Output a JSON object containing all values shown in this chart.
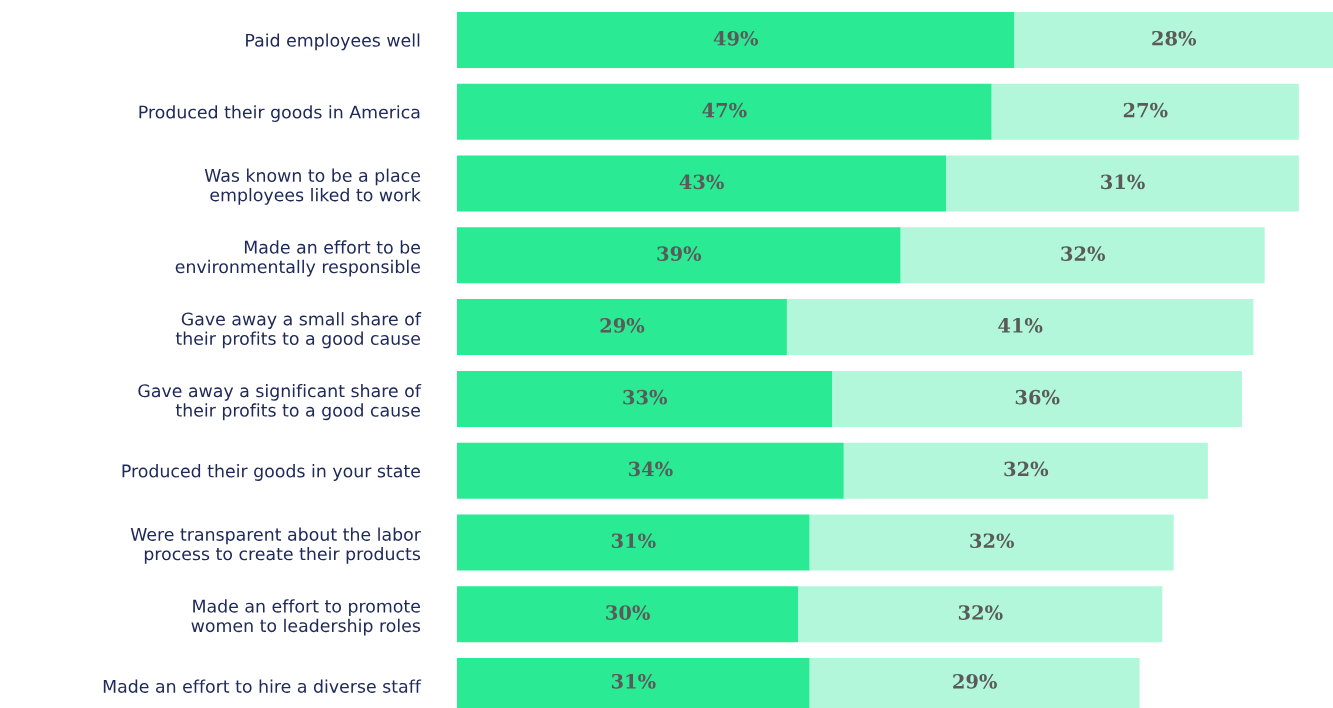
{
  "chart_data": {
    "type": "bar",
    "orientation": "horizontal",
    "stacked": true,
    "data_labels": true,
    "categories": [
      "Paid employees well",
      "Produced their goods in America",
      "Was known to be a place\nemployees liked to work",
      "Made an effort to be\nenvironmentally responsible",
      "Gave away a small share of\ntheir profits to a good cause",
      "Gave away a significant share of\ntheir profits to a good cause",
      "Produced their goods in your state",
      "Were transparent about the labor\nprocess to create their products",
      "Made an effort to promote\nwomen to leadership roles",
      "Made an effort to hire a diverse staff"
    ],
    "series": [
      {
        "color": "#2aea94",
        "values": [
          49,
          47,
          43,
          39,
          29,
          33,
          34,
          31,
          30,
          31
        ],
        "value_labels": [
          "49%",
          "47%",
          "43%",
          "39%",
          "29%",
          "33%",
          "34%",
          "31%",
          "30%",
          "31%"
        ]
      },
      {
        "color": "#b3f7da",
        "values": [
          28,
          27,
          31,
          32,
          41,
          36,
          32,
          32,
          32,
          29
        ],
        "value_labels": [
          "28%",
          "27%",
          "31%",
          "32%",
          "41%",
          "36%",
          "32%",
          "32%",
          "32%",
          "29%"
        ]
      }
    ]
  }
}
